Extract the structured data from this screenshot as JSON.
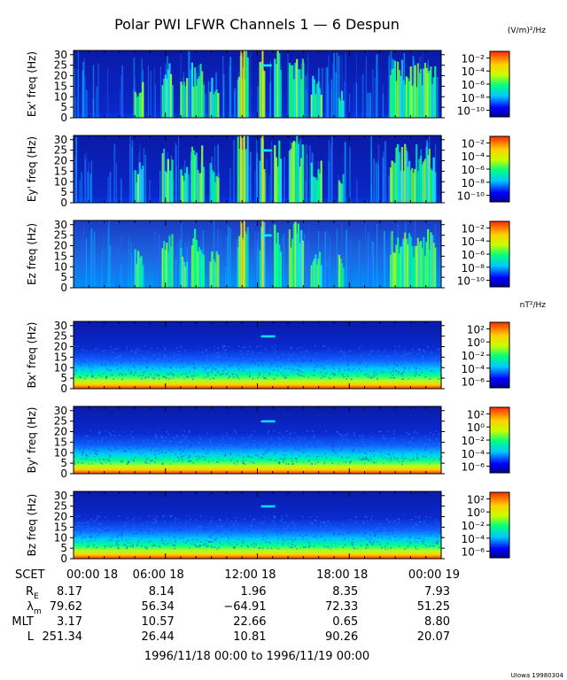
{
  "title": "Polar PWI LFWR Channels 1 — 6 Despun",
  "footer_credit": "UIowa 19980304",
  "date_range": "1996/11/18 00:00 to 1996/11/19 00:00",
  "colors": {
    "background_spectrum": "#0a1aa8",
    "colormap": [
      "#00008f",
      "#0000ff",
      "#00c8ff",
      "#00ff80",
      "#c8ff00",
      "#ffd000",
      "#ff2a00"
    ]
  },
  "chart_data": [
    {
      "type": "heatmap",
      "ylabel": "Ex' freq (Hz)",
      "yticks": [
        "0",
        "5",
        "10",
        "15",
        "20",
        "25",
        "30"
      ],
      "ylim": [
        0,
        32
      ],
      "units": "(V/m)²/Hz",
      "colorbar_ticks": [
        "10⁻¹⁰",
        "10⁻⁸",
        "10⁻⁶",
        "10⁻⁴",
        "10⁻²"
      ]
    },
    {
      "type": "heatmap",
      "ylabel": "Ey' freq (Hz)",
      "yticks": [
        "0",
        "5",
        "10",
        "15",
        "20",
        "25",
        "30"
      ],
      "ylim": [
        0,
        32
      ],
      "colorbar_ticks": [
        "10⁻¹⁰",
        "10⁻⁸",
        "10⁻⁶",
        "10⁻⁴",
        "10⁻²"
      ]
    },
    {
      "type": "heatmap",
      "ylabel": "Ez freq (Hz)",
      "yticks": [
        "0",
        "5",
        "10",
        "15",
        "20",
        "25",
        "30"
      ],
      "ylim": [
        0,
        32
      ],
      "colorbar_ticks": [
        "10⁻¹⁰",
        "10⁻⁸",
        "10⁻⁶",
        "10⁻⁴",
        "10⁻²"
      ]
    },
    {
      "type": "heatmap",
      "ylabel": "Bx' freq (Hz)",
      "yticks": [
        "0",
        "5",
        "10",
        "15",
        "20",
        "25",
        "30"
      ],
      "ylim": [
        0,
        32
      ],
      "units": "nT²/Hz",
      "colorbar_ticks": [
        "10⁻⁶",
        "10⁻⁴",
        "10⁻²",
        "10⁰",
        "10²"
      ]
    },
    {
      "type": "heatmap",
      "ylabel": "By' freq (Hz)",
      "yticks": [
        "0",
        "5",
        "10",
        "15",
        "20",
        "25",
        "30"
      ],
      "ylim": [
        0,
        32
      ],
      "colorbar_ticks": [
        "10⁻⁶",
        "10⁻⁴",
        "10⁻²",
        "10⁰",
        "10²"
      ]
    },
    {
      "type": "heatmap",
      "ylabel": "Bz freq (Hz)",
      "yticks": [
        "0",
        "5",
        "10",
        "15",
        "20",
        "25",
        "30"
      ],
      "ylim": [
        0,
        32
      ],
      "colorbar_ticks": [
        "10⁻⁶",
        "10⁻⁴",
        "10⁻²",
        "10⁰",
        "10²"
      ]
    }
  ],
  "time_axis": {
    "row_label": "SCET",
    "ticks": [
      "00:00 18",
      "06:00 18",
      "12:00 18",
      "18:00 18",
      "00:00 19"
    ]
  },
  "ephemeris": [
    {
      "label": "R",
      "sub": "E",
      "values": [
        "8.17",
        "8.14",
        "1.96",
        "8.35",
        "7.93"
      ]
    },
    {
      "label": "λ",
      "sub": "m",
      "values": [
        "79.62",
        "56.34",
        "−64.91",
        "72.33",
        "51.25"
      ]
    },
    {
      "label": "MLT",
      "sub": "",
      "values": [
        "3.17",
        "10.57",
        "22.66",
        "0.65",
        "8.80"
      ]
    },
    {
      "label": "L",
      "sub": "",
      "values": [
        "251.34",
        "26.44",
        "10.81",
        "90.26",
        "20.07"
      ]
    }
  ]
}
